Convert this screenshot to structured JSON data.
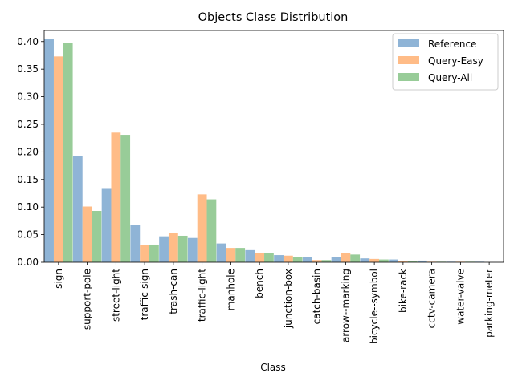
{
  "chart_data": {
    "type": "bar",
    "title": "Objects Class Distribution",
    "xlabel": "Class",
    "ylabel": "",
    "ylim": [
      0,
      0.42
    ],
    "yticks": [
      0.0,
      0.05,
      0.1,
      0.15,
      0.2,
      0.25,
      0.3,
      0.35,
      0.4
    ],
    "ytick_labels": [
      "0.00",
      "0.05",
      "0.10",
      "0.15",
      "0.20",
      "0.25",
      "0.30",
      "0.35",
      "0.40"
    ],
    "grid": false,
    "legend_position": "top-right",
    "categories": [
      "sign",
      "support-pole",
      "street-light",
      "traffic-sign",
      "trash-can",
      "traffic-light",
      "manhole",
      "bench",
      "junction-box",
      "catch-basin",
      "arrow--marking",
      "bicycle--symbol",
      "bike-rack",
      "cctv-camera",
      "water-valve",
      "parking-meter"
    ],
    "series": [
      {
        "name": "Reference",
        "color": "#8fb4d6",
        "values": [
          0.405,
          0.192,
          0.133,
          0.067,
          0.047,
          0.044,
          0.034,
          0.022,
          0.013,
          0.009,
          0.009,
          0.007,
          0.005,
          0.003,
          0.001,
          0.001
        ]
      },
      {
        "name": "Query-Easy",
        "color": "#ffbc87",
        "values": [
          0.373,
          0.101,
          0.235,
          0.031,
          0.053,
          0.123,
          0.026,
          0.017,
          0.012,
          0.004,
          0.017,
          0.006,
          0.002,
          0.001,
          0.001,
          0.0
        ]
      },
      {
        "name": "Query-All",
        "color": "#98cc98",
        "values": [
          0.398,
          0.093,
          0.231,
          0.032,
          0.048,
          0.114,
          0.026,
          0.016,
          0.01,
          0.004,
          0.014,
          0.005,
          0.002,
          0.001,
          0.001,
          0.0
        ]
      }
    ]
  }
}
